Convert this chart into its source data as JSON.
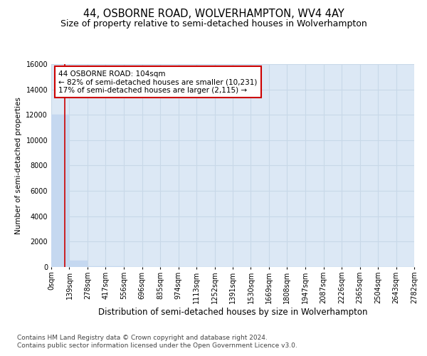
{
  "title": "44, OSBORNE ROAD, WOLVERHAMPTON, WV4 4AY",
  "subtitle": "Size of property relative to semi-detached houses in Wolverhampton",
  "xlabel": "Distribution of semi-detached houses by size in Wolverhampton",
  "ylabel": "Number of semi-detached properties",
  "footnote1": "Contains HM Land Registry data © Crown copyright and database right 2024.",
  "footnote2": "Contains public sector information licensed under the Open Government Licence v3.0.",
  "bin_edges": [
    0,
    139,
    278,
    417,
    556,
    696,
    835,
    974,
    1113,
    1252,
    1391,
    1530,
    1669,
    1808,
    1947,
    2087,
    2226,
    2365,
    2504,
    2643,
    2782
  ],
  "bin_labels": [
    "0sqm",
    "139sqm",
    "278sqm",
    "417sqm",
    "556sqm",
    "696sqm",
    "835sqm",
    "974sqm",
    "1113sqm",
    "1252sqm",
    "1391sqm",
    "1530sqm",
    "1669sqm",
    "1808sqm",
    "1947sqm",
    "2087sqm",
    "2226sqm",
    "2365sqm",
    "2504sqm",
    "2643sqm",
    "2782sqm"
  ],
  "bar_heights": [
    12000,
    500,
    80,
    30,
    15,
    8,
    5,
    3,
    2,
    2,
    1,
    1,
    1,
    1,
    1,
    0,
    0,
    0,
    0,
    0
  ],
  "bar_color": "#c5d8f0",
  "bar_edgecolor": "#c5d8f0",
  "property_size": 104,
  "property_line_color": "#cc0000",
  "ylim": [
    0,
    16000
  ],
  "yticks": [
    0,
    2000,
    4000,
    6000,
    8000,
    10000,
    12000,
    14000,
    16000
  ],
  "grid_color": "#c8d8e8",
  "bg_color": "#dce8f5",
  "annotation_text": "44 OSBORNE ROAD: 104sqm\n← 82% of semi-detached houses are smaller (10,231)\n17% of semi-detached houses are larger (2,115) →",
  "annotation_box_color": "#ffffff",
  "annotation_border_color": "#cc0000",
  "title_fontsize": 10.5,
  "subtitle_fontsize": 9,
  "xlabel_fontsize": 8.5,
  "ylabel_fontsize": 7.5,
  "footnote_fontsize": 6.5,
  "tick_fontsize": 7,
  "annot_fontsize": 7.5
}
